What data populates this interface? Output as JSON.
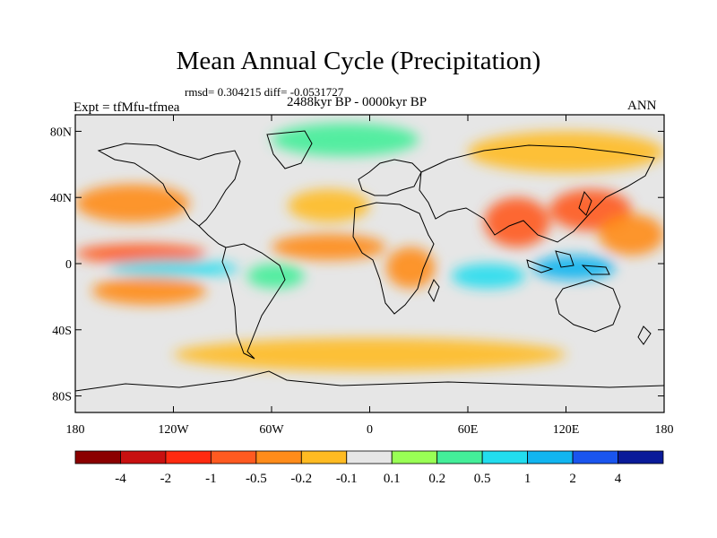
{
  "title": "Mean Annual Cycle (Precipitation)",
  "stats_line": "rmsd= 0.304215 diff= -0.0531727",
  "period": "2488kyr BP - 0000kyr BP",
  "experiment": "Expt = tfMfu-tfmea",
  "season": "ANN",
  "chart_data": {
    "type": "heatmap",
    "projection": "cylindrical-equidistant",
    "variable": "Precipitation difference",
    "x_range": [
      -180,
      180
    ],
    "y_range": [
      -90,
      90
    ],
    "xticks": [
      {
        "value": -180,
        "label": "180"
      },
      {
        "value": -120,
        "label": "120W"
      },
      {
        "value": -60,
        "label": "60W"
      },
      {
        "value": 0,
        "label": "0"
      },
      {
        "value": 60,
        "label": "60E"
      },
      {
        "value": 120,
        "label": "120E"
      },
      {
        "value": 180,
        "label": "180"
      }
    ],
    "yticks": [
      {
        "value": 80,
        "label": "80N"
      },
      {
        "value": 40,
        "label": "40N"
      },
      {
        "value": 0,
        "label": "0"
      },
      {
        "value": -40,
        "label": "40S"
      },
      {
        "value": -80,
        "label": "80S"
      }
    ],
    "colorbar": {
      "levels": [
        "-4",
        "-2",
        "-1",
        "-0.5",
        "-0.2",
        "-0.1",
        "0.1",
        "0.2",
        "0.5",
        "1",
        "2",
        "4"
      ],
      "colors": [
        "#8b0000",
        "#c81010",
        "#ff2a10",
        "#ff5a20",
        "#ff8c1a",
        "#ffbb22",
        "#e6e6e6",
        "#99ff55",
        "#44ee99",
        "#22ddee",
        "#11b5f0",
        "#1a55ee",
        "#0a1a99"
      ]
    },
    "regions": [
      {
        "name": "north-pacific-drying",
        "lon": [
          -180,
          -110
        ],
        "lat": [
          25,
          48
        ],
        "value": -0.5
      },
      {
        "name": "tropical-pacific-drying",
        "lon": [
          -180,
          -100
        ],
        "lat": [
          0,
          12
        ],
        "value": -1
      },
      {
        "name": "equatorial-pacific-wetting",
        "lon": [
          -160,
          -80
        ],
        "lat": [
          -8,
          2
        ],
        "value": 0.5
      },
      {
        "name": "south-pacific-drying",
        "lon": [
          -170,
          -100
        ],
        "lat": [
          -25,
          -8
        ],
        "value": -0.5
      },
      {
        "name": "tropical-atlantic-drying",
        "lon": [
          -60,
          10
        ],
        "lat": [
          2,
          18
        ],
        "value": -0.5
      },
      {
        "name": "south-america-wetting",
        "lon": [
          -75,
          -40
        ],
        "lat": [
          -15,
          0
        ],
        "value": 0.2
      },
      {
        "name": "north-atlantic-drying",
        "lon": [
          -50,
          0
        ],
        "lat": [
          25,
          45
        ],
        "value": -0.2
      },
      {
        "name": "africa-drying",
        "lon": [
          10,
          40
        ],
        "lat": [
          -15,
          10
        ],
        "value": -0.5
      },
      {
        "name": "indian-ocean-wetting",
        "lon": [
          50,
          95
        ],
        "lat": [
          -15,
          0
        ],
        "value": 0.5
      },
      {
        "name": "south-asia-drying",
        "lon": [
          70,
          110
        ],
        "lat": [
          10,
          40
        ],
        "value": -1
      },
      {
        "name": "east-asia-drying",
        "lon": [
          110,
          160
        ],
        "lat": [
          20,
          45
        ],
        "value": -1
      },
      {
        "name": "maritime-continent-wetting",
        "lon": [
          100,
          150
        ],
        "lat": [
          -10,
          5
        ],
        "value": 1
      },
      {
        "name": "west-pacific-drying",
        "lon": [
          140,
          180
        ],
        "lat": [
          5,
          30
        ],
        "value": -0.5
      },
      {
        "name": "siberia-drying",
        "lon": [
          60,
          180
        ],
        "lat": [
          55,
          80
        ],
        "value": -0.2
      },
      {
        "name": "southern-ocean-drying",
        "lon": [
          -120,
          120
        ],
        "lat": [
          -65,
          -45
        ],
        "value": -0.2
      },
      {
        "name": "arctic-wetting",
        "lon": [
          -60,
          30
        ],
        "lat": [
          65,
          85
        ],
        "value": 0.2
      }
    ]
  }
}
